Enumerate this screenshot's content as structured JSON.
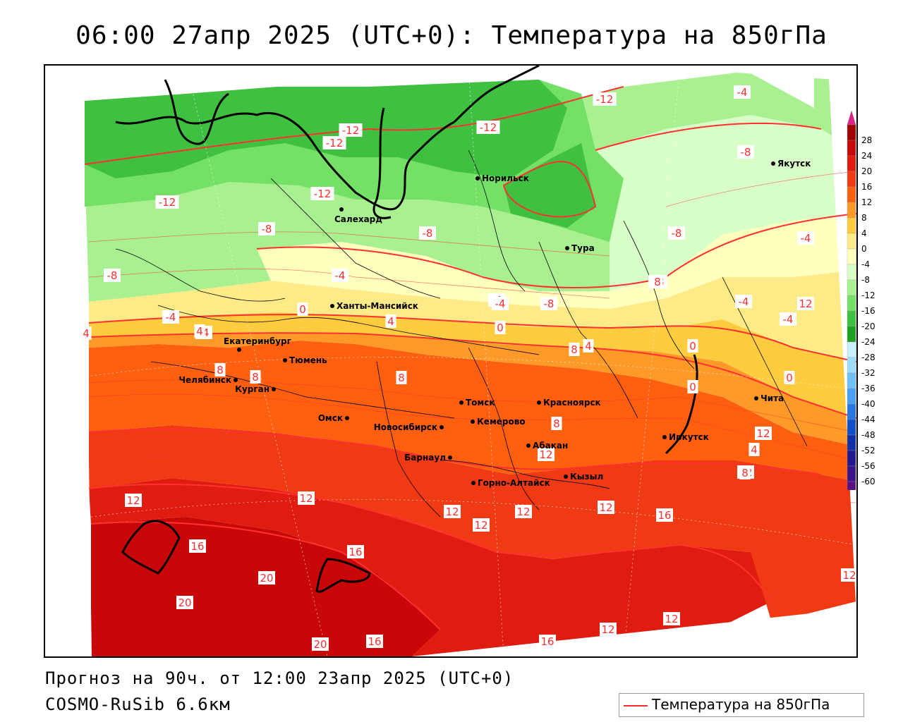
{
  "title": "06:00 27апр 2025 (UTC+0): Температура на 850гПа",
  "forecast_text": "Прогноз на 90ч. от 12:00 23апр 2025 (UTC+0)",
  "model_text": "COSMO-RuSib 6.6км",
  "legend_label": "Температура на 850гПа",
  "colors": {
    "isotherm_line": "#ff3030",
    "coast_line": "#000000"
  },
  "colorbar": {
    "ticks": [
      "28",
      "24",
      "20",
      "16",
      "12",
      "8",
      "4",
      "0",
      "-4",
      "-8",
      "-12",
      "-16",
      "-20",
      "-24",
      "-28",
      "-32",
      "-36",
      "-40",
      "-44",
      "-48",
      "-52",
      "-56",
      "-60"
    ],
    "colors": [
      "#a00000",
      "#c80808",
      "#e01c10",
      "#f03a14",
      "#ff6010",
      "#ff9a28",
      "#ffcc40",
      "#ffea88",
      "#ffffbe",
      "#d8ffc8",
      "#a8f090",
      "#74e066",
      "#40c040",
      "#20a020",
      "#c8f0ff",
      "#a0dcff",
      "#70c0f8",
      "#4aa0f0",
      "#2878e0",
      "#1050c8",
      "#1030a8",
      "#201890",
      "#3a1488",
      "#5a1080"
    ],
    "top_color": "#e0208a",
    "bottom_color": "#9a30c8"
  },
  "cities": [
    {
      "name": "Якутск"
    },
    {
      "name": "Норильск"
    },
    {
      "name": "Салехард"
    },
    {
      "name": "Тура"
    },
    {
      "name": "Ханты-Мансийск"
    },
    {
      "name": "Екатеринбург"
    },
    {
      "name": "Тюмень"
    },
    {
      "name": "Челябинск"
    },
    {
      "name": "Курган"
    },
    {
      "name": "Омск"
    },
    {
      "name": "Томск"
    },
    {
      "name": "Красноярск"
    },
    {
      "name": "Новосибирск"
    },
    {
      "name": "Кемерово"
    },
    {
      "name": "Абакан"
    },
    {
      "name": "Иркутск"
    },
    {
      "name": "Чита"
    },
    {
      "name": "Барнаул"
    },
    {
      "name": "Кызыл"
    },
    {
      "name": "Горно-Алтайск"
    }
  ],
  "isotherm_labels": [
    "-12",
    "-12",
    "-12",
    "-12",
    "-12",
    "-12",
    "-4",
    "-8",
    "-8",
    "-8",
    "-8",
    "-4",
    "-8",
    "-4",
    "-8",
    "-4",
    "-8",
    "-4",
    "0",
    "-4",
    "-8",
    "-4",
    "-4",
    "0",
    "4",
    "4",
    "8",
    "4",
    "8",
    "8",
    "0",
    "8",
    "8",
    "0",
    "12",
    "12",
    "12",
    "12",
    "12",
    "12",
    "12",
    "16",
    "16",
    "16",
    "12",
    "12",
    "20",
    "20",
    "20",
    "16",
    "16",
    "12",
    "12",
    "12",
    "4",
    "8",
    "12",
    "-4",
    "4",
    "0",
    "8",
    "-8"
  ]
}
